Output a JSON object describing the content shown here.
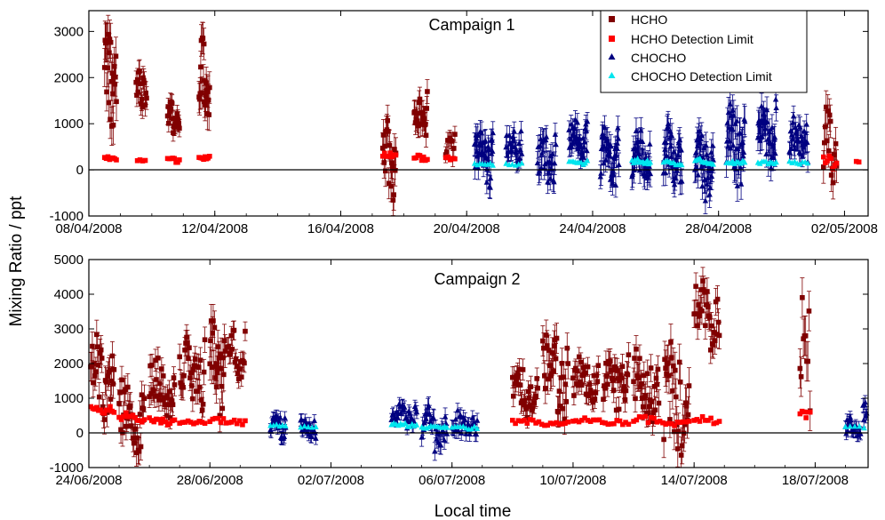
{
  "figure": {
    "ylabel": "Mixing Ratio / ppt",
    "xlabel": "Local time"
  },
  "legend": [
    {
      "label": "HCHO",
      "color": "#800000",
      "marker": "square"
    },
    {
      "label": "HCHO Detection Limit",
      "color": "#ff0000",
      "marker": "square"
    },
    {
      "label": "CHOCHO",
      "color": "#000080",
      "marker": "triangle"
    },
    {
      "label": "CHOCHO Detection Limit",
      "color": "#00e5ee",
      "marker": "triangle"
    }
  ],
  "chart_data": [
    {
      "type": "scatter",
      "title": "Campaign 1",
      "x_ticks": [
        "08/04/2008",
        "12/04/2008",
        "16/04/2008",
        "20/04/2008",
        "24/04/2008",
        "28/04/2008",
        "02/05/2008"
      ],
      "x_range": [
        "2008-04-08",
        "2008-05-02T18:00"
      ],
      "y_ticks": [
        "-1000",
        "0",
        "1000",
        "2000",
        "3000"
      ],
      "ylim": [
        -1000,
        3450
      ],
      "series": [
        {
          "name": "HCHO",
          "color": "#800000",
          "marker": "square",
          "error_bars": true,
          "bursts": [
            {
              "t0": "2008-04-08T12:00",
              "t1": "2008-04-08T21:00",
              "lo": 500,
              "hi": 3200,
              "n": 24
            },
            {
              "t0": "2008-04-09T12:00",
              "t1": "2008-04-09T20:00",
              "lo": 1100,
              "hi": 2400,
              "n": 16
            },
            {
              "t0": "2008-04-10T12:00",
              "t1": "2008-04-10T21:00",
              "lo": 700,
              "hi": 1500,
              "n": 22
            },
            {
              "t0": "2008-04-11T12:00",
              "t1": "2008-04-11T20:00",
              "lo": 900,
              "hi": 3000,
              "n": 20
            },
            {
              "t0": "2008-04-17T08:00",
              "t1": "2008-04-17T18:00",
              "lo": -850,
              "hi": 1200,
              "n": 20
            },
            {
              "t0": "2008-04-18T08:00",
              "t1": "2008-04-18T18:00",
              "lo": 300,
              "hi": 1700,
              "n": 22
            },
            {
              "t0": "2008-04-19T08:00",
              "t1": "2008-04-19T15:00",
              "lo": 200,
              "hi": 900,
              "n": 10
            },
            {
              "t0": "2008-05-01T08:00",
              "t1": "2008-05-01T18:00",
              "lo": -400,
              "hi": 1800,
              "n": 16
            }
          ]
        },
        {
          "name": "HCHO Detection Limit",
          "color": "#ff0000",
          "marker": "square",
          "bursts": [
            {
              "t0": "2008-04-08T12:00",
              "t1": "2008-04-08T21:00",
              "lo": 200,
              "hi": 300,
              "n": 8
            },
            {
              "t0": "2008-04-09T13:00",
              "t1": "2008-04-09T19:00",
              "lo": 180,
              "hi": 260,
              "n": 4
            },
            {
              "t0": "2008-04-10T12:00",
              "t1": "2008-04-10T21:00",
              "lo": 150,
              "hi": 280,
              "n": 8
            },
            {
              "t0": "2008-04-11T12:00",
              "t1": "2008-04-11T20:00",
              "lo": 200,
              "hi": 300,
              "n": 8
            },
            {
              "t0": "2008-04-17T08:00",
              "t1": "2008-04-17T18:00",
              "lo": 200,
              "hi": 400,
              "n": 8
            },
            {
              "t0": "2008-04-18T08:00",
              "t1": "2008-04-18T18:00",
              "lo": 200,
              "hi": 350,
              "n": 8
            },
            {
              "t0": "2008-04-19T08:00",
              "t1": "2008-04-19T15:00",
              "lo": 200,
              "hi": 300,
              "n": 5
            },
            {
              "t0": "2008-05-01T08:00",
              "t1": "2008-05-01T18:00",
              "lo": 0,
              "hi": 400,
              "n": 8
            },
            {
              "t0": "2008-05-02T09:00",
              "t1": "2008-05-02T11:00",
              "lo": 150,
              "hi": 200,
              "n": 2
            }
          ]
        },
        {
          "name": "CHOCHO",
          "color": "#000080",
          "marker": "triangle",
          "error_bars": true,
          "bursts": [
            {
              "t0": "2008-04-20T06:00",
              "t1": "2008-04-20T20:00",
              "lo": -400,
              "hi": 900,
              "n": 40
            },
            {
              "t0": "2008-04-21T06:00",
              "t1": "2008-04-21T18:00",
              "lo": 0,
              "hi": 1000,
              "n": 24
            },
            {
              "t0": "2008-04-22T06:00",
              "t1": "2008-04-22T20:00",
              "lo": -500,
              "hi": 800,
              "n": 30
            },
            {
              "t0": "2008-04-23T06:00",
              "t1": "2008-04-23T20:00",
              "lo": 200,
              "hi": 1100,
              "n": 36
            },
            {
              "t0": "2008-04-24T06:00",
              "t1": "2008-04-24T20:00",
              "lo": -400,
              "hi": 1000,
              "n": 36
            },
            {
              "t0": "2008-04-25T06:00",
              "t1": "2008-04-25T20:00",
              "lo": -600,
              "hi": 1000,
              "n": 36
            },
            {
              "t0": "2008-04-26T06:00",
              "t1": "2008-04-26T20:00",
              "lo": -500,
              "hi": 1000,
              "n": 36
            },
            {
              "t0": "2008-04-27T06:00",
              "t1": "2008-04-27T20:00",
              "lo": -700,
              "hi": 900,
              "n": 36
            },
            {
              "t0": "2008-04-28T06:00",
              "t1": "2008-04-28T20:00",
              "lo": -500,
              "hi": 1500,
              "n": 36
            },
            {
              "t0": "2008-04-29T06:00",
              "t1": "2008-04-29T20:00",
              "lo": 0,
              "hi": 1600,
              "n": 36
            },
            {
              "t0": "2008-04-30T06:00",
              "t1": "2008-04-30T20:00",
              "lo": 100,
              "hi": 1200,
              "n": 32
            }
          ]
        },
        {
          "name": "CHOCHO Detection Limit",
          "color": "#00e5ee",
          "marker": "triangle",
          "bursts": [
            {
              "t0": "2008-04-20T06:00",
              "t1": "2008-04-20T20:00",
              "lo": 80,
              "hi": 150,
              "n": 8
            },
            {
              "t0": "2008-04-21T06:00",
              "t1": "2008-04-21T18:00",
              "lo": 80,
              "hi": 150,
              "n": 6
            },
            {
              "t0": "2008-04-23T06:00",
              "t1": "2008-04-23T20:00",
              "lo": 100,
              "hi": 200,
              "n": 10
            },
            {
              "t0": "2008-04-25T06:00",
              "t1": "2008-04-25T20:00",
              "lo": 100,
              "hi": 250,
              "n": 14
            },
            {
              "t0": "2008-04-26T06:00",
              "t1": "2008-04-26T20:00",
              "lo": 100,
              "hi": 200,
              "n": 10
            },
            {
              "t0": "2008-04-27T06:00",
              "t1": "2008-04-27T20:00",
              "lo": 100,
              "hi": 250,
              "n": 12
            },
            {
              "t0": "2008-04-28T06:00",
              "t1": "2008-04-28T20:00",
              "lo": 100,
              "hi": 200,
              "n": 10
            },
            {
              "t0": "2008-04-29T06:00",
              "t1": "2008-04-29T20:00",
              "lo": 100,
              "hi": 200,
              "n": 10
            },
            {
              "t0": "2008-04-30T06:00",
              "t1": "2008-04-30T20:00",
              "lo": 100,
              "hi": 200,
              "n": 8
            }
          ]
        }
      ]
    },
    {
      "type": "scatter",
      "title": "Campaign 2",
      "x_ticks": [
        "24/06/2008",
        "28/06/2008",
        "02/07/2008",
        "06/07/2008",
        "10/07/2008",
        "14/07/2008",
        "18/07/2008"
      ],
      "x_range": [
        "2008-06-24",
        "2008-07-19T18:00"
      ],
      "y_ticks": [
        "-1000",
        "0",
        "1000",
        "2000",
        "3000",
        "4000",
        "5000"
      ],
      "ylim": [
        -1000,
        5000
      ],
      "series": [
        {
          "name": "HCHO",
          "color": "#800000",
          "marker": "square",
          "error_bars": true,
          "bursts": [
            {
              "t0": "2008-06-24T00:00",
              "t1": "2008-06-24T20:00",
              "lo": 300,
              "hi": 3000,
              "n": 30
            },
            {
              "t0": "2008-06-25T00:00",
              "t1": "2008-06-25T20:00",
              "lo": -800,
              "hi": 1700,
              "n": 30
            },
            {
              "t0": "2008-06-26T00:00",
              "t1": "2008-06-26T20:00",
              "lo": 400,
              "hi": 2300,
              "n": 30
            },
            {
              "t0": "2008-06-27T00:00",
              "t1": "2008-06-27T20:00",
              "lo": 500,
              "hi": 2800,
              "n": 30
            },
            {
              "t0": "2008-06-28T00:00",
              "t1": "2008-06-28T12:00",
              "lo": 400,
              "hi": 3600,
              "n": 24
            },
            {
              "t0": "2008-06-28T14:00",
              "t1": "2008-06-29T04:00",
              "lo": 1500,
              "hi": 3000,
              "n": 20
            },
            {
              "t0": "2008-07-08T00:00",
              "t1": "2008-07-08T20:00",
              "lo": 200,
              "hi": 2000,
              "n": 30
            },
            {
              "t0": "2008-07-09T00:00",
              "t1": "2008-07-09T20:00",
              "lo": 300,
              "hi": 3200,
              "n": 30
            },
            {
              "t0": "2008-07-10T00:00",
              "t1": "2008-07-10T20:00",
              "lo": 700,
              "hi": 2200,
              "n": 30
            },
            {
              "t0": "2008-07-11T00:00",
              "t1": "2008-07-11T20:00",
              "lo": 300,
              "hi": 2500,
              "n": 30
            },
            {
              "t0": "2008-07-12T00:00",
              "t1": "2008-07-12T20:00",
              "lo": 200,
              "hi": 2700,
              "n": 30
            },
            {
              "t0": "2008-07-13T00:00",
              "t1": "2008-07-13T20:00",
              "lo": -900,
              "hi": 2700,
              "n": 30
            },
            {
              "t0": "2008-07-14T00:00",
              "t1": "2008-07-14T20:00",
              "lo": 2200,
              "hi": 4700,
              "n": 30
            },
            {
              "t0": "2008-07-17T12:00",
              "t1": "2008-07-17T20:00",
              "lo": 300,
              "hi": 4300,
              "n": 10
            }
          ]
        },
        {
          "name": "HCHO Detection Limit",
          "color": "#ff0000",
          "marker": "square",
          "bursts": [
            {
              "t0": "2008-06-24T00:00",
              "t1": "2008-06-24T20:00",
              "lo": 500,
              "hi": 900,
              "n": 14
            },
            {
              "t0": "2008-06-25T00:00",
              "t1": "2008-06-25T20:00",
              "lo": 300,
              "hi": 600,
              "n": 12
            },
            {
              "t0": "2008-06-26T00:00",
              "t1": "2008-06-26T20:00",
              "lo": 200,
              "hi": 500,
              "n": 12
            },
            {
              "t0": "2008-06-27T00:00",
              "t1": "2008-06-27T20:00",
              "lo": 200,
              "hi": 400,
              "n": 10
            },
            {
              "t0": "2008-06-28T00:00",
              "t1": "2008-06-29T04:00",
              "lo": 200,
              "hi": 500,
              "n": 14
            },
            {
              "t0": "2008-07-08T00:00",
              "t1": "2008-07-09T20:00",
              "lo": 200,
              "hi": 400,
              "n": 20
            },
            {
              "t0": "2008-07-10T00:00",
              "t1": "2008-07-11T20:00",
              "lo": 200,
              "hi": 450,
              "n": 20
            },
            {
              "t0": "2008-07-12T00:00",
              "t1": "2008-07-13T20:00",
              "lo": 150,
              "hi": 500,
              "n": 20
            },
            {
              "t0": "2008-07-14T00:00",
              "t1": "2008-07-14T20:00",
              "lo": 250,
              "hi": 500,
              "n": 10
            },
            {
              "t0": "2008-07-17T12:00",
              "t1": "2008-07-17T20:00",
              "lo": 200,
              "hi": 800,
              "n": 6
            }
          ]
        },
        {
          "name": "CHOCHO",
          "color": "#000080",
          "marker": "triangle",
          "error_bars": true,
          "bursts": [
            {
              "t0": "2008-06-30T00:00",
              "t1": "2008-06-30T12:00",
              "lo": -200,
              "hi": 600,
              "n": 24
            },
            {
              "t0": "2008-07-01T00:00",
              "t1": "2008-07-01T12:00",
              "lo": -200,
              "hi": 500,
              "n": 22
            },
            {
              "t0": "2008-07-04T00:00",
              "t1": "2008-07-04T20:00",
              "lo": 100,
              "hi": 900,
              "n": 30
            },
            {
              "t0": "2008-07-05T00:00",
              "t1": "2008-07-05T20:00",
              "lo": -600,
              "hi": 800,
              "n": 30
            },
            {
              "t0": "2008-07-06T00:00",
              "t1": "2008-07-06T20:00",
              "lo": -300,
              "hi": 700,
              "n": 28
            },
            {
              "t0": "2008-07-19T00:00",
              "t1": "2008-07-19T12:00",
              "lo": -200,
              "hi": 500,
              "n": 20
            },
            {
              "t0": "2008-07-19T14:00",
              "t1": "2008-07-20T02:00",
              "lo": 100,
              "hi": 1000,
              "n": 22
            }
          ]
        },
        {
          "name": "CHOCHO Detection Limit",
          "color": "#00e5ee",
          "marker": "triangle",
          "bursts": [
            {
              "t0": "2008-06-30T00:00",
              "t1": "2008-06-30T12:00",
              "lo": 150,
              "hi": 300,
              "n": 6
            },
            {
              "t0": "2008-07-01T00:00",
              "t1": "2008-07-01T12:00",
              "lo": 100,
              "hi": 200,
              "n": 5
            },
            {
              "t0": "2008-07-04T00:00",
              "t1": "2008-07-04T20:00",
              "lo": 150,
              "hi": 300,
              "n": 12
            },
            {
              "t0": "2008-07-05T00:00",
              "t1": "2008-07-05T20:00",
              "lo": 100,
              "hi": 200,
              "n": 12
            },
            {
              "t0": "2008-07-06T00:00",
              "t1": "2008-07-06T20:00",
              "lo": 100,
              "hi": 200,
              "n": 10
            },
            {
              "t0": "2008-07-19T00:00",
              "t1": "2008-07-20T02:00",
              "lo": 100,
              "hi": 200,
              "n": 8
            }
          ]
        }
      ]
    }
  ]
}
